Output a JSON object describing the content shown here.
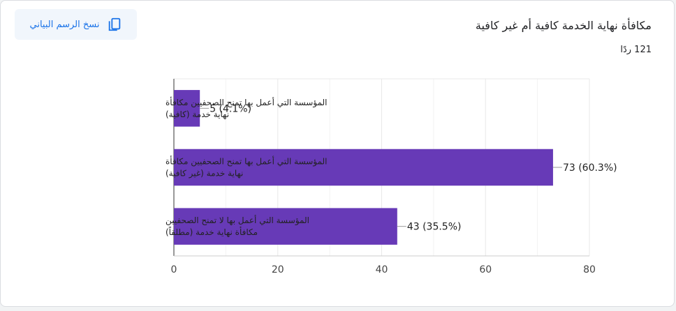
{
  "header": {
    "title": "مكافأة نهاية الخدمة كافية أم غير كافية",
    "responses": "121 ردًا",
    "copy_button_label": "نسخ الرسم البياني"
  },
  "colors": {
    "bar": "#673ab7",
    "grid": "#e8e8e8",
    "accent": "#1a73e8"
  },
  "icons": {
    "copy": "copy-icon"
  },
  "chart_data": {
    "type": "bar",
    "orientation": "horizontal",
    "categories": [
      [
        "المؤسسة التي أعمل بها تمنح الصحفيين مكافأة",
        "نهاية خدمة (كافية)"
      ],
      [
        "المؤسسة التي أعمل بها تمنح الصحفيين مكافأة",
        "نهاية خدمة (غير كافية)"
      ],
      [
        "المؤسسة التي أعمل بها لا تمنح الصحفيين",
        "مكافأة نهاية خدمة (مطلقاً)"
      ]
    ],
    "values": [
      5,
      73,
      43
    ],
    "data_labels": [
      "5 (4.1%)",
      "73 (60.3%)",
      "43 (35.5%)"
    ],
    "xlim": [
      0,
      80
    ],
    "xticks": [
      0,
      20,
      40,
      60,
      80
    ],
    "grid": true
  }
}
